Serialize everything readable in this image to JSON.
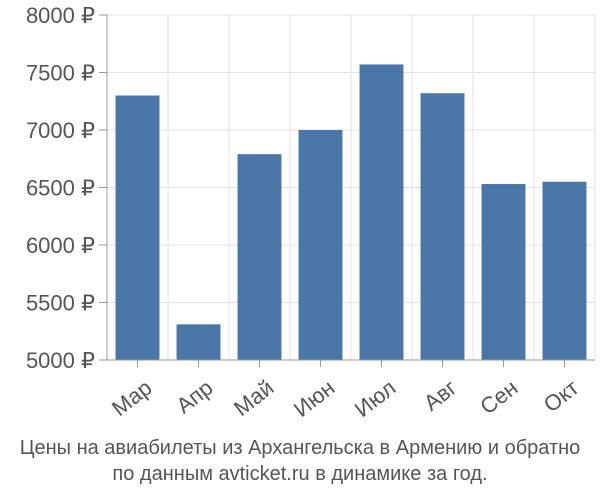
{
  "chart_data": {
    "type": "bar",
    "categories": [
      "Мар",
      "Апр",
      "Май",
      "Июн",
      "Июл",
      "Авг",
      "Сен",
      "Окт"
    ],
    "values": [
      7300,
      5310,
      6790,
      7000,
      7570,
      7320,
      6530,
      6550
    ],
    "ylim": [
      5000,
      8000
    ],
    "yticks": [
      5000,
      5500,
      6000,
      6500,
      7000,
      7500,
      8000
    ],
    "ytick_labels": [
      "5000 ₽",
      "5500 ₽",
      "6000 ₽",
      "6500 ₽",
      "7000 ₽",
      "7500 ₽",
      "8000 ₽"
    ],
    "grid": true,
    "bar_color": "#4a76a8"
  },
  "caption": {
    "line1": "Цены на авиабилеты из Архангельска в Армению и обратно",
    "line2": "по данным avticket.ru в динамике за год."
  }
}
